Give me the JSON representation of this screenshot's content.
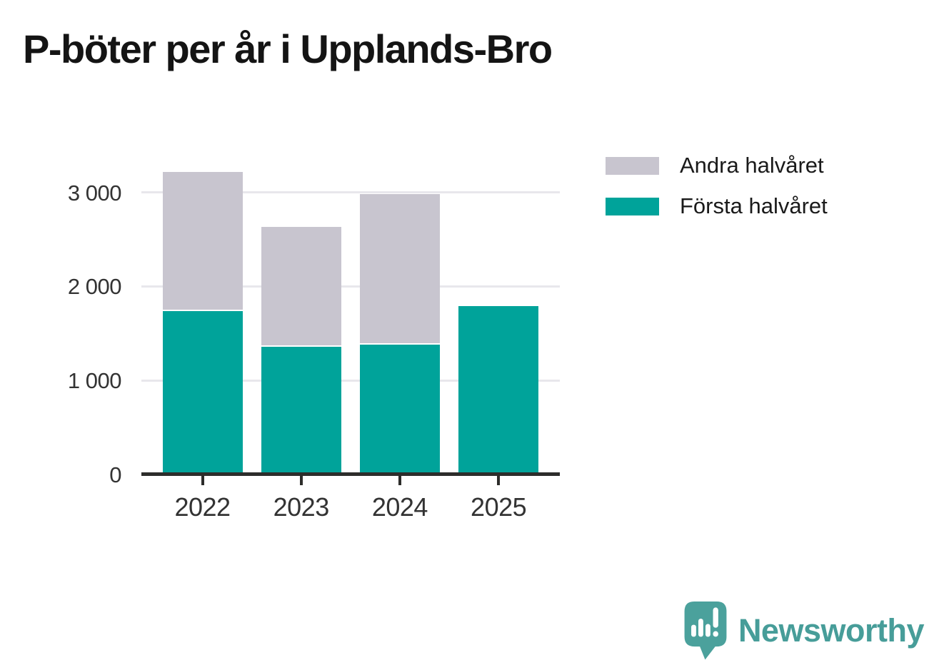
{
  "title": "P-böter per år i Upplands-Bro",
  "chart_data": {
    "type": "bar",
    "stacked": true,
    "title": "P-böter per år i Upplands-Bro",
    "xlabel": "",
    "ylabel": "",
    "categories": [
      "2022",
      "2023",
      "2024",
      "2025"
    ],
    "series": [
      {
        "name": "Första halvåret",
        "color": "#00a39a",
        "values": [
          1740,
          1360,
          1380,
          1790
        ]
      },
      {
        "name": "Andra halvåret",
        "color": "#c8c5cf",
        "values": [
          1480,
          1270,
          1600,
          0
        ]
      }
    ],
    "totals": [
      3220,
      2630,
      2980,
      1790
    ],
    "ylim": [
      0,
      3300
    ],
    "yticks": [
      0,
      1000,
      2000,
      3000
    ],
    "ytick_labels": [
      "0",
      "1 000",
      "2 000",
      "3 000"
    ],
    "grid": true,
    "gridline_color": "#e8e7ec",
    "axis_color": "#2d2d2b",
    "legend_position": "right-top"
  },
  "legend": {
    "items": [
      {
        "label": "Andra halvåret",
        "color": "#c8c5cf"
      },
      {
        "label": "Första halvåret",
        "color": "#00a39a"
      }
    ]
  },
  "branding": {
    "wordmark": "Newsworthy",
    "logo_color": "#4ba19c",
    "text_color": "#479d99"
  }
}
